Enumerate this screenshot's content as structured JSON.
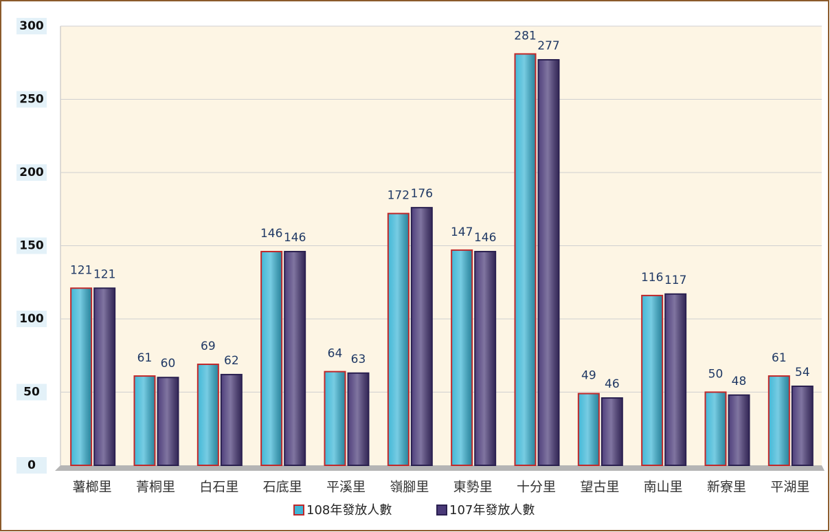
{
  "chart_data": {
    "type": "bar",
    "categories": [
      "薯榔里",
      "菁桐里",
      "白石里",
      "石底里",
      "平溪里",
      "嶺腳里",
      "東勢里",
      "十分里",
      "望古里",
      "南山里",
      "新寮里",
      "平湖里"
    ],
    "series": [
      {
        "name": "108年發放人數",
        "color": "#3db6d6",
        "values": [
          121,
          61,
          69,
          146,
          64,
          172,
          147,
          281,
          49,
          116,
          50,
          61
        ]
      },
      {
        "name": "107年發放人數",
        "color": "#4a3a78",
        "values": [
          121,
          60,
          62,
          146,
          63,
          176,
          146,
          277,
          46,
          117,
          48,
          54
        ]
      }
    ],
    "ylim": [
      0,
      300
    ],
    "yticks": [
      0,
      50,
      100,
      150,
      200,
      250,
      300
    ],
    "grid": true
  }
}
